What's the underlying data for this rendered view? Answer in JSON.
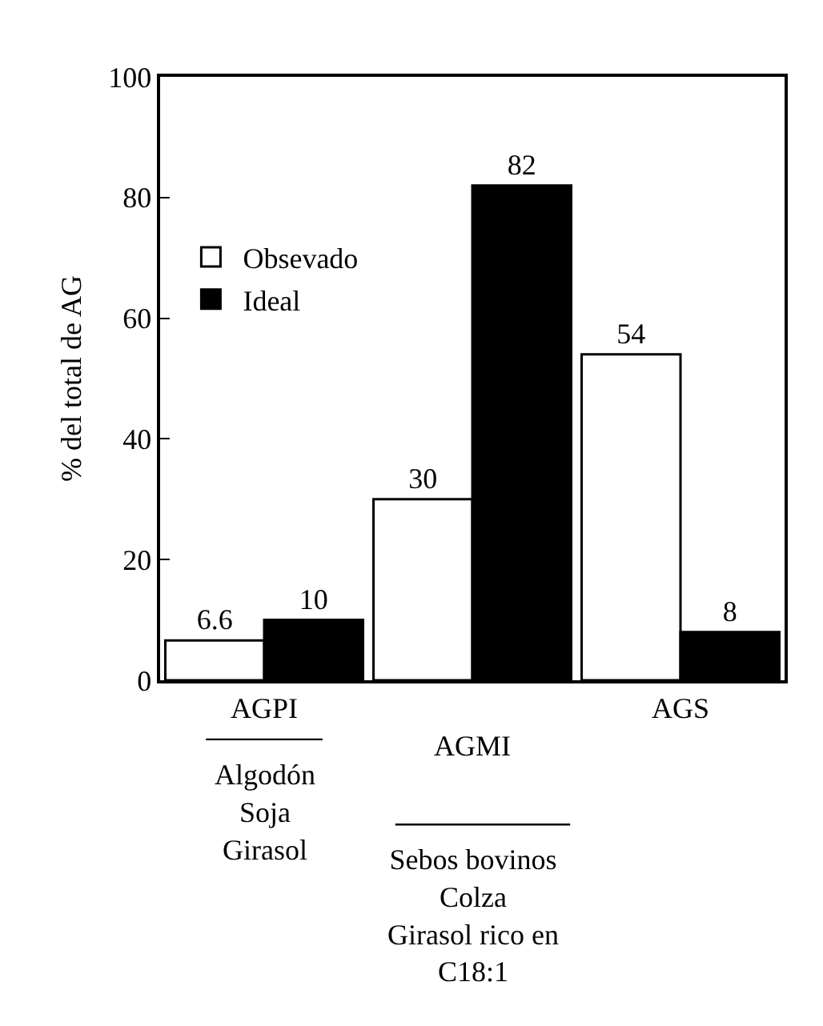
{
  "chart_data": {
    "type": "bar",
    "ylabel": "% del total de AG",
    "categories": [
      "AGPI",
      "AGMI",
      "AGS"
    ],
    "series": [
      {
        "name": "Obsevado",
        "color": "#ffffff",
        "values": [
          6.6,
          30,
          54
        ]
      },
      {
        "name": "Ideal",
        "color": "#000000",
        "values": [
          10,
          82,
          8
        ]
      }
    ],
    "ylim": [
      0,
      100
    ],
    "yticks": [
      0,
      20,
      40,
      60,
      80,
      100
    ],
    "grid": false,
    "legend": "top left",
    "data_labels": true,
    "annotations": [
      "Algodón\nSoja\nGirasol",
      "Sebos bovinos\nColza\nGirasol rico en\nC18:1"
    ]
  }
}
